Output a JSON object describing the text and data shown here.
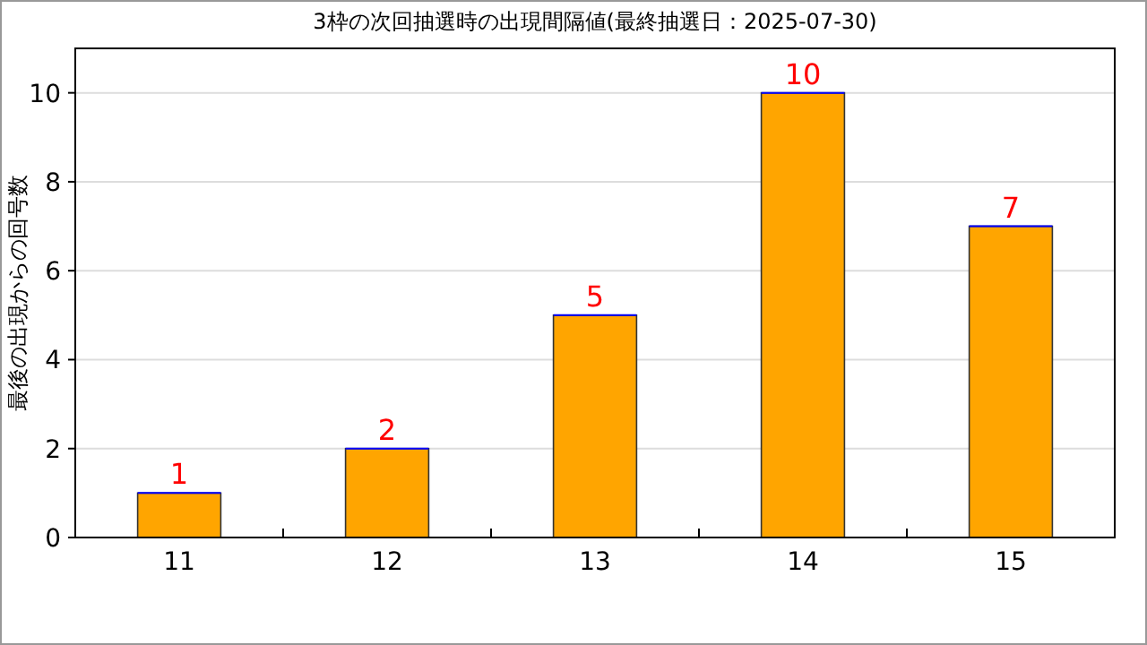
{
  "chart_data": {
    "type": "bar",
    "title": "3枠の次回抽選時の出現間隔値(最終抽選日：2025-07-30)",
    "ylabel": "最後の出現からの回号数",
    "categories": [
      "11",
      "12",
      "13",
      "14",
      "15"
    ],
    "values": [
      1,
      2,
      5,
      10,
      7
    ],
    "color": "#ffa500",
    "ylim": [
      0,
      11
    ],
    "yticks": [
      0,
      2,
      4,
      6,
      8,
      10
    ],
    "grid": "y",
    "data_labels": true
  }
}
